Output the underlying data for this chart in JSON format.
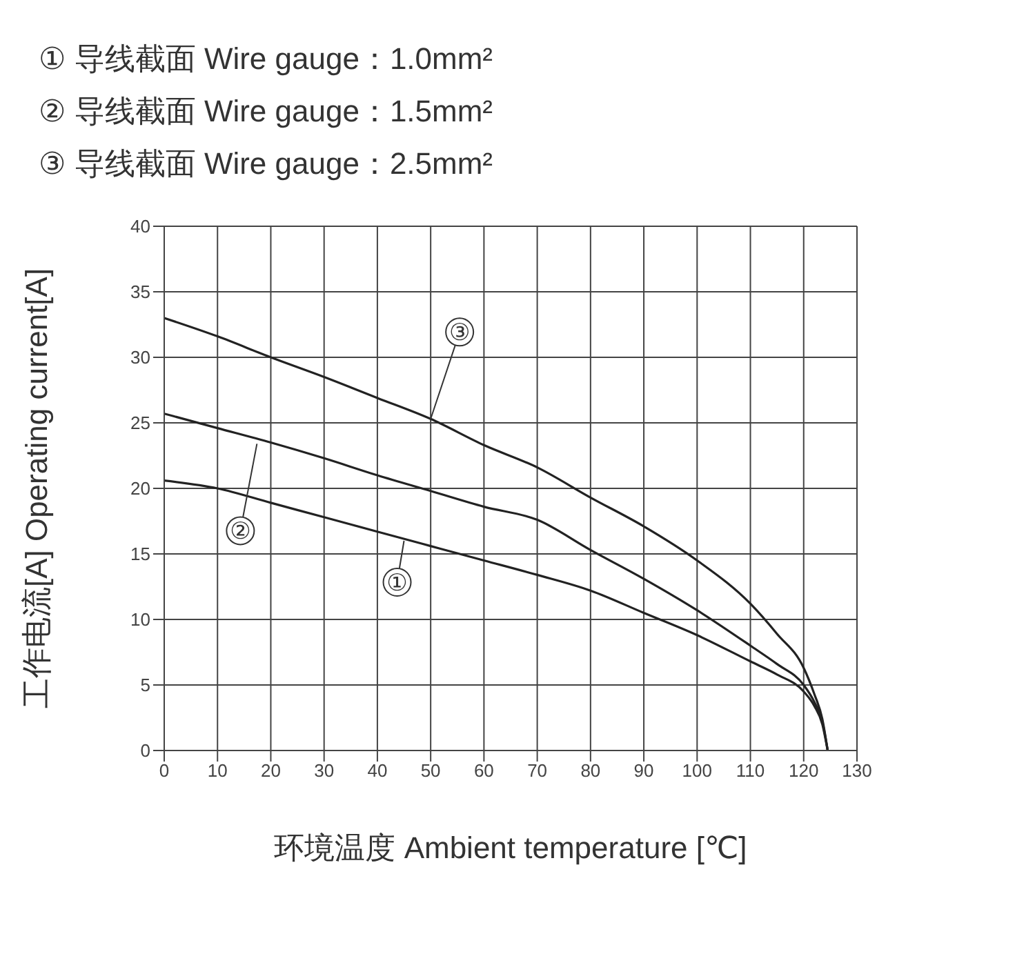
{
  "chart_data": {
    "type": "line",
    "annotations": [
      "① 导线截面 Wire gauge：1.0mm²",
      "② 导线截面 Wire gauge：1.5mm²",
      "③ 导线截面 Wire gauge：2.5mm²",
      {
        "text": "①",
        "x": 45,
        "y": 16
      },
      {
        "text": "②",
        "x": 17.4,
        "y": 23.4
      },
      {
        "text": "③",
        "x": 50,
        "y": 25.3
      }
    ],
    "xlabel": "环境温度 Ambient temperature [℃]",
    "ylabel": "工作电流[A]  Operating current[A]",
    "x": [
      0,
      10,
      20,
      30,
      40,
      50,
      60,
      70,
      80,
      90,
      100,
      110,
      115,
      120,
      122,
      123.5,
      124.5
    ],
    "series": [
      {
        "color": "#222222",
        "values": [
          20.6,
          20,
          18.9,
          17.8,
          16.7,
          15.6,
          14.5,
          13.4,
          12.2,
          10.5,
          8.8,
          6.8,
          5.8,
          4.5,
          3.4,
          2,
          0
        ]
      },
      {
        "color": "#222222",
        "values": [
          25.7,
          24.6,
          23.5,
          22.3,
          21,
          19.8,
          18.6,
          17.6,
          15.3,
          13.1,
          10.7,
          8,
          6.6,
          5,
          3.7,
          2.2,
          0
        ]
      },
      {
        "color": "#222222",
        "values": [
          33,
          31.6,
          30,
          28.5,
          26.9,
          25.3,
          23.3,
          21.6,
          19.3,
          17.1,
          14.5,
          11.2,
          8.9,
          6.3,
          4.3,
          2.4,
          0
        ]
      }
    ],
    "xlim": [
      0,
      130
    ],
    "xticks": [
      0,
      10,
      20,
      30,
      40,
      50,
      60,
      70,
      80,
      90,
      100,
      110,
      120,
      130
    ],
    "ylim": [
      0,
      40
    ],
    "yticks": [
      0,
      5,
      10,
      15,
      20,
      25,
      30,
      35,
      40
    ],
    "grid": true,
    "marker": "none",
    "line_style": "solid"
  }
}
